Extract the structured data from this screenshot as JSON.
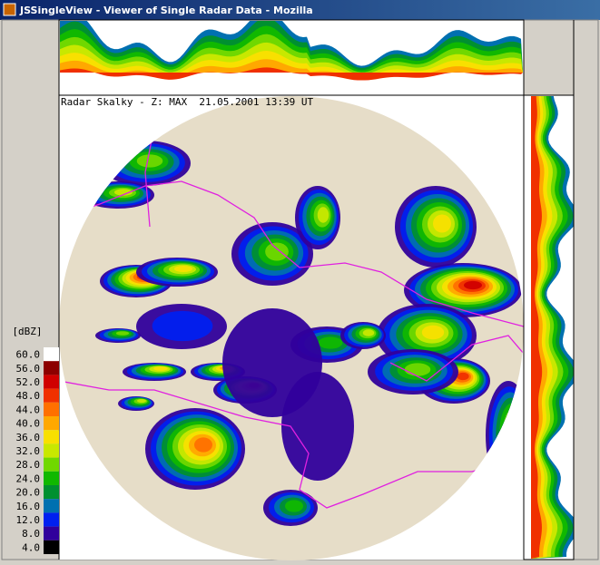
{
  "window": {
    "title": "JSSingleView - Viewer of Single Radar Data - Mozilla"
  },
  "radar": {
    "caption": "Radar Skalky - Z: MAX  21.05.2001 13:39 UT"
  },
  "legend": {
    "unit": "[dBZ]",
    "entries": [
      {
        "label": "60.0",
        "color": "#ffffff"
      },
      {
        "label": "56.0",
        "color": "#8c0000"
      },
      {
        "label": "52.0",
        "color": "#d00000"
      },
      {
        "label": "48.0",
        "color": "#f03000"
      },
      {
        "label": "44.0",
        "color": "#ff7000"
      },
      {
        "label": "40.0",
        "color": "#ffa800"
      },
      {
        "label": "36.0",
        "color": "#f8e000"
      },
      {
        "label": "32.0",
        "color": "#c8e800"
      },
      {
        "label": "28.0",
        "color": "#70d800"
      },
      {
        "label": "24.0",
        "color": "#10b800"
      },
      {
        "label": "20.0",
        "color": "#009030"
      },
      {
        "label": "16.0",
        "color": "#0070b0"
      },
      {
        "label": "12.0",
        "color": "#0020f0"
      },
      {
        "label": "8.0",
        "color": "#30009c"
      },
      {
        "label": "4.0",
        "color": "#000000"
      }
    ]
  }
}
